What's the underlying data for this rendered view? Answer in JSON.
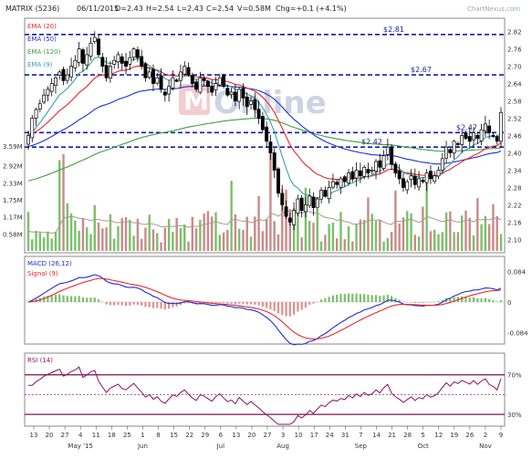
{
  "header": {
    "symbol": "MATRIX (5236)",
    "date": "06/11/2015",
    "open": "O=2.43",
    "high": "H=2.54",
    "low": "L=2.43",
    "close": "C=2.54",
    "volume": "V=0.58M",
    "change": "Chg=+0.1 (+4.1%)",
    "watermark": "ChartNexus.com",
    "logo_text": "Online"
  },
  "colors": {
    "ema20": "#e8262a",
    "ema50": "#1f2fd0",
    "ema120": "#3e9e3e",
    "ema9": "#3aa0a8",
    "vol_up": "#7cbf6a",
    "vol_down": "#c98a8a",
    "vol_ma": "#a89a8e",
    "macd": "#1f2fd0",
    "signal": "#e8262a",
    "rsi": "#8a1060",
    "level_line": "#1a1aa8",
    "band_line": "#7a1050"
  },
  "chart_data": [
    {
      "type": "candlestick",
      "name": "price",
      "legend": [
        {
          "label": "EMA (20)",
          "color": "#e8262a"
        },
        {
          "label": "EMA (50)",
          "color": "#1f2fd0"
        },
        {
          "label": "EMA (120)",
          "color": "#3e9e3e"
        },
        {
          "label": "EMA (9)",
          "color": "#3aa0a8"
        }
      ],
      "ylim": [
        2.06,
        2.86
      ],
      "ticks": [
        "2.82",
        "2.76",
        "2.70",
        "2.64",
        "2.58",
        "2.52",
        "2.46",
        "2.40",
        "2.34",
        "2.28",
        "2.22",
        "2.16",
        "2.10"
      ],
      "levels": [
        {
          "value": 2.81,
          "label": "$2.81"
        },
        {
          "value": 2.67,
          "label": "$2.67"
        },
        {
          "value": 2.47,
          "label": "$2.47",
          "label_at": "right"
        },
        {
          "value": 2.42,
          "label": "$2.42",
          "label_at": "mid"
        }
      ],
      "x_dates": [
        "13",
        "20",
        "27",
        "4",
        "11",
        "18",
        "25",
        "1",
        "8",
        "15",
        "22",
        "29",
        "6",
        "13",
        "20",
        "27",
        "3",
        "10",
        "17",
        "24",
        "31",
        "7",
        "14",
        "21",
        "28",
        "5",
        "12",
        "19",
        "26",
        "2",
        "9"
      ],
      "months": [
        {
          "label": "May '15",
          "at": 3
        },
        {
          "label": "Jun",
          "at": 7
        },
        {
          "label": "Jul",
          "at": 12
        },
        {
          "label": "Aug",
          "at": 16
        },
        {
          "label": "Sep",
          "at": 21
        },
        {
          "label": "Oct",
          "at": 25
        },
        {
          "label": "Nov",
          "at": 29
        }
      ],
      "closes": [
        2.46,
        2.52,
        2.55,
        2.57,
        2.6,
        2.62,
        2.64,
        2.66,
        2.68,
        2.65,
        2.67,
        2.7,
        2.72,
        2.76,
        2.71,
        2.74,
        2.78,
        2.8,
        2.74,
        2.7,
        2.66,
        2.7,
        2.72,
        2.74,
        2.71,
        2.7,
        2.73,
        2.76,
        2.73,
        2.7,
        2.66,
        2.68,
        2.64,
        2.66,
        2.62,
        2.6,
        2.63,
        2.66,
        2.65,
        2.68,
        2.7,
        2.67,
        2.64,
        2.62,
        2.66,
        2.65,
        2.63,
        2.61,
        2.64,
        2.66,
        2.63,
        2.6,
        2.61,
        2.58,
        2.62,
        2.59,
        2.56,
        2.58,
        2.55,
        2.52,
        2.48,
        2.44,
        2.4,
        2.34,
        2.26,
        2.22,
        2.18,
        2.16,
        2.2,
        2.24,
        2.2,
        2.22,
        2.25,
        2.21,
        2.24,
        2.27,
        2.25,
        2.28,
        2.3,
        2.29,
        2.31,
        2.3,
        2.33,
        2.31,
        2.34,
        2.32,
        2.35,
        2.33,
        2.34,
        2.37,
        2.35,
        2.39,
        2.42,
        2.36,
        2.33,
        2.31,
        2.28,
        2.3,
        2.32,
        2.29,
        2.31,
        2.3,
        2.33,
        2.31,
        2.32,
        2.34,
        2.38,
        2.42,
        2.4,
        2.44,
        2.43,
        2.46,
        2.45,
        2.44,
        2.47,
        2.45,
        2.48,
        2.5,
        2.47,
        2.46,
        2.44,
        2.54
      ]
    },
    {
      "type": "bar",
      "name": "volume",
      "yticks": [
        "3.59M",
        "2.92M",
        "2.33M",
        "1.75M",
        "1.17M",
        "0.58M"
      ],
      "ylim": [
        0,
        3.59
      ],
      "unit": "M"
    },
    {
      "type": "line",
      "name": "MACD",
      "legend": [
        {
          "label": "MACD (26,12)",
          "color": "#1f2fd0"
        },
        {
          "label": "Signal (9)",
          "color": "#e8262a"
        }
      ],
      "ylim": [
        -0.11,
        0.12
      ],
      "ticks": [
        "0.084",
        "0",
        "-0.084"
      ]
    },
    {
      "type": "line",
      "name": "RSI",
      "legend": [
        {
          "label": "RSI (14)",
          "color": "#8a1060"
        }
      ],
      "ylim": [
        20,
        90
      ],
      "ticks": [
        "70%",
        "30%"
      ],
      "bands": [
        70,
        50,
        30
      ]
    }
  ]
}
